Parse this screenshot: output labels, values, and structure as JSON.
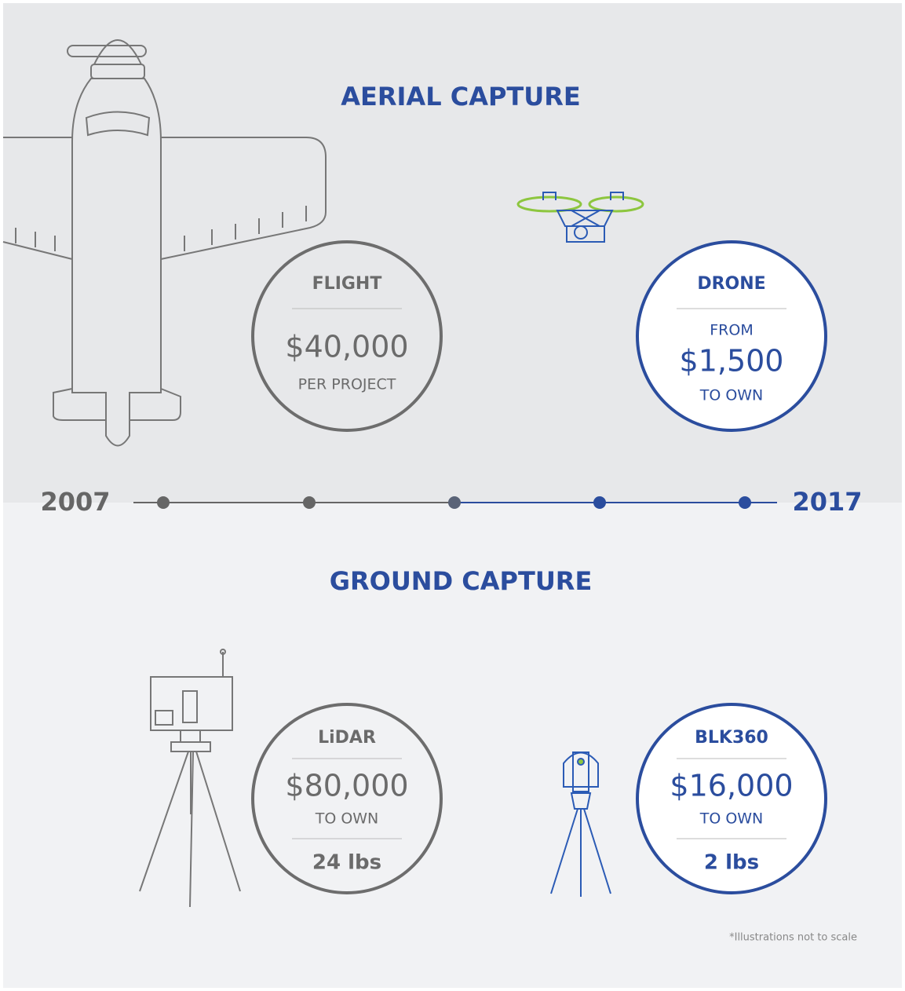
{
  "aerial": {
    "title": "AERIAL CAPTURE",
    "flight": {
      "label": "FLIGHT",
      "price": "$40,000",
      "note": "PER PROJECT"
    },
    "drone": {
      "label": "DRONE",
      "prefix": "FROM",
      "price": "$1,500",
      "note": "TO OWN"
    }
  },
  "timeline": {
    "start": "2007",
    "end": "2017"
  },
  "ground": {
    "title": "GROUND CAPTURE",
    "lidar": {
      "label": "LiDAR",
      "price": "$80,000",
      "note": "TO OWN",
      "weight": "24 lbs"
    },
    "blk360": {
      "label": "BLK360",
      "price": "$16,000",
      "note": "TO OWN",
      "weight": "2 lbs"
    }
  },
  "footnote": "*Illustrations not to scale"
}
